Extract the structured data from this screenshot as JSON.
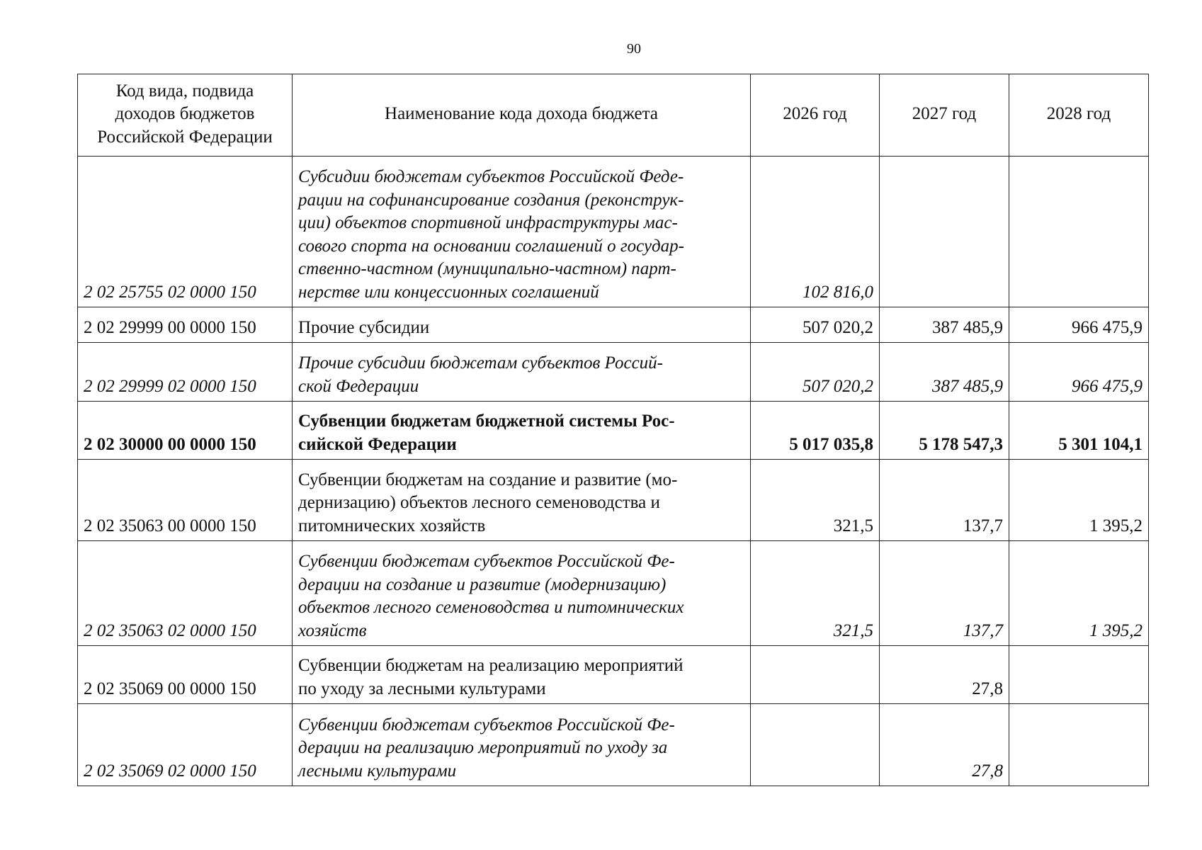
{
  "header": {
    "page_number": "90"
  },
  "table": {
    "columns": [
      "Код вида, подвида\nдоходов бюджетов\nРоссийской Федерации",
      "Наименование кода дохода бюджета",
      "2026 год",
      "2027 год",
      "2028 год"
    ],
    "rows": [
      {
        "style": "italic",
        "cells": [
          "2 02 25755 02 0000 150",
          "Субсидии бюджетам субъектов Российской Феде-\nрации на софинансирование создания (реконструк-\nции) объектов спортивной инфраструктуры мас-\nсового спорта на основании соглашений о государ-\nственно-частном (муниципально-частном) парт-\nнерстве или концессионных соглашений",
          "102 816,0",
          null,
          null
        ]
      },
      {
        "style": "normal",
        "cells": [
          "2 02 29999 00 0000 150",
          "Прочие субсидии",
          "507 020,2",
          "387 485,9",
          "966 475,9"
        ]
      },
      {
        "style": "italic",
        "cells": [
          "2 02 29999 02 0000 150",
          "Прочие субсидии бюджетам субъектов Россий-\nской Федерации",
          "507 020,2",
          "387 485,9",
          "966 475,9"
        ]
      },
      {
        "style": "bold",
        "cells": [
          "2 02 30000 00 0000 150",
          "Субвенции бюджетам бюджетной системы Рос-\nсийской Федерации",
          "5 017 035,8",
          "5 178 547,3",
          "5 301 104,1"
        ]
      },
      {
        "style": "normal",
        "cells": [
          "2 02 35063 00 0000 150",
          "Субвенции бюджетам на создание и развитие (мо-\nдернизацию) объектов лесного семеноводства и\nпитомнических хозяйств",
          "321,5",
          "137,7",
          "1 395,2"
        ]
      },
      {
        "style": "italic",
        "cells": [
          "2 02 35063 02 0000 150",
          "Субвенции бюджетам субъектов Российской Фе-\nдерации на создание и развитие (модернизацию)\nобъектов лесного семеноводства и питомнических\nхозяйств",
          "321,5",
          "137,7",
          "1 395,2"
        ]
      },
      {
        "style": "normal",
        "cells": [
          "2 02 35069 00 0000 150",
          "Субвенции бюджетам на реализацию мероприятий\nпо уходу за лесными культурами",
          null,
          "27,8",
          null
        ]
      },
      {
        "style": "italic",
        "cells": [
          "2 02 35069 02 0000 150",
          "Субвенции бюджетам субъектов Российской Фе-\nдерации на реализацию мероприятий по уходу за\nлесными культурами",
          null,
          "27,8",
          null
        ]
      }
    ]
  }
}
